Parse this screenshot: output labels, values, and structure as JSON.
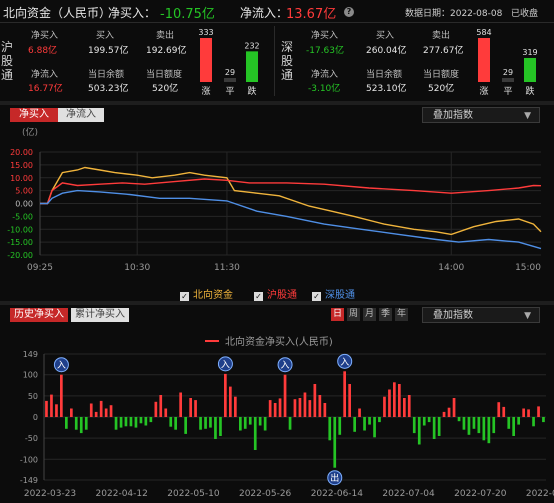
{
  "header": {
    "title": "北向资金（人民币）",
    "net_buy_label": "净买入：",
    "net_buy_value": "-10.75亿",
    "net_inflow_label": "净流入：",
    "net_inflow_value": "13.67亿",
    "date_text": "数据日期：2022-08-08",
    "status": "已收盘"
  },
  "sh": {
    "name": "沪股通",
    "net_buy_label": "净买入",
    "net_buy": "6.88亿",
    "buy_label": "买入",
    "buy": "199.57亿",
    "sell_label": "卖出",
    "sell": "192.69亿",
    "inflow_label": "净流入",
    "inflow": "16.77亿",
    "balance_label": "当日余额",
    "balance": "503.23亿",
    "quota_label": "当日额度",
    "quota": "520亿",
    "up": 333,
    "flat": 29,
    "down": 232,
    "up_label": "涨",
    "flat_label": "平",
    "down_label": "跌"
  },
  "sz": {
    "name": "深股通",
    "net_buy_label": "净买入",
    "net_buy": "-17.63亿",
    "buy_label": "买入",
    "buy": "260.04亿",
    "sell_label": "卖出",
    "sell": "277.67亿",
    "inflow_label": "净流入",
    "inflow": "-3.10亿",
    "balance_label": "当日余额",
    "balance": "523.10亿",
    "quota_label": "当日额度",
    "quota": "520亿",
    "up": 584,
    "flat": 29,
    "down": 319,
    "up_label": "涨",
    "flat_label": "平",
    "down_label": "跌"
  },
  "intraday": {
    "tab_active": "净买入",
    "tab_other": "净流入",
    "dropdown": "叠加指数",
    "legend": [
      "北向资金",
      "沪股通",
      "深股通"
    ]
  },
  "history": {
    "tab_active": "历史净买入",
    "tab_other": "累计净买入",
    "periods": [
      "日",
      "周",
      "月",
      "季",
      "年"
    ],
    "dropdown": "叠加指数",
    "legend": "北向资金净买入(人民币)",
    "markers": {
      "in": "入",
      "out": "出"
    }
  },
  "colors": {
    "red": "#ff3b3b",
    "green": "#25c425",
    "yellow": "#f0b43c",
    "blue": "#4f8fe6"
  },
  "chart_data": [
    {
      "type": "line",
      "title": "",
      "ylabel": "(亿)",
      "ylim": [
        -20,
        20
      ],
      "yticks": [
        "20.00",
        "15.00",
        "10.00",
        "5.00",
        "0.00",
        "-5.00",
        "-10.00",
        "-15.00",
        "-20.00"
      ],
      "xticks": [
        "09:25",
        "10:30",
        "11:30",
        "14:00",
        "15:00"
      ],
      "x_minutes_from_0925": [
        0,
        65,
        125,
        275,
        335
      ],
      "series": [
        {
          "name": "北向资金",
          "color": "#f0b43c",
          "t": [
            0,
            5,
            8,
            15,
            25,
            30,
            40,
            50,
            65,
            75,
            90,
            100,
            110,
            125,
            130,
            145,
            160,
            180,
            195,
            210,
            230,
            250,
            265,
            275,
            290,
            305,
            320,
            330,
            335
          ],
          "values": [
            0,
            0,
            5,
            12,
            13,
            14,
            13,
            12,
            11,
            10,
            11,
            12,
            11,
            10,
            5,
            4,
            3,
            -1,
            -3,
            -5,
            -8,
            -10,
            -11,
            -12,
            -9,
            -7,
            -6,
            -8,
            -11
          ]
        },
        {
          "name": "沪股通",
          "color": "#ff3b3b",
          "t": [
            0,
            5,
            8,
            15,
            25,
            40,
            55,
            70,
            90,
            110,
            125,
            140,
            165,
            190,
            220,
            250,
            275,
            300,
            320,
            330,
            335
          ],
          "values": [
            0,
            0,
            5,
            8,
            7,
            7.5,
            8,
            7.5,
            8.5,
            9.5,
            9,
            8,
            8,
            7.5,
            6,
            5,
            4,
            5,
            6,
            7,
            6.9
          ]
        },
        {
          "name": "深股通",
          "color": "#4f8fe6",
          "t": [
            0,
            5,
            8,
            15,
            25,
            40,
            60,
            80,
            100,
            125,
            145,
            165,
            190,
            215,
            240,
            265,
            280,
            300,
            320,
            335
          ],
          "values": [
            0,
            0,
            2,
            4,
            5,
            4.5,
            3.5,
            2,
            2,
            1,
            -3,
            -5,
            -8,
            -10,
            -12,
            -14,
            -15,
            -14,
            -15,
            -17.5
          ]
        }
      ]
    },
    {
      "type": "bar",
      "title": "北向资金净买入(人民币)",
      "ylim": [
        -149,
        149
      ],
      "yticks": [
        "149",
        "100",
        "50",
        "0",
        "-50",
        "-100",
        "-149"
      ],
      "xticks": [
        "2022-03-23",
        "2022-04-12",
        "2022-05-10",
        "2022-05-26",
        "2022-06-14",
        "2022-07-04",
        "2022-07-20",
        "2022-08-08"
      ],
      "values": [
        38,
        53,
        30,
        100,
        -28,
        20,
        -30,
        -38,
        -30,
        32,
        12,
        38,
        20,
        28,
        -30,
        -25,
        -22,
        -22,
        -25,
        -15,
        -20,
        -12,
        36,
        52,
        20,
        -23,
        -30,
        58,
        -40,
        45,
        40,
        -30,
        -28,
        -25,
        -52,
        -45,
        102,
        72,
        48,
        -32,
        -28,
        -18,
        -78,
        -20,
        -32,
        40,
        33,
        44,
        100,
        -30,
        42,
        45,
        58,
        40,
        78,
        52,
        33,
        -55,
        -120,
        -42,
        108,
        78,
        -35,
        20,
        -32,
        -18,
        -48,
        -12,
        48,
        65,
        82,
        78,
        45,
        52,
        -38,
        -65,
        -20,
        -12,
        -52,
        -45,
        12,
        22,
        45,
        -10,
        -30,
        -42,
        -28,
        -38,
        -55,
        -62,
        -38,
        35,
        24,
        -28,
        -45,
        -18,
        20,
        18,
        -22,
        25,
        -12
      ],
      "markers": [
        {
          "index": 3,
          "type": "in"
        },
        {
          "index": 36,
          "type": "in"
        },
        {
          "index": 48,
          "type": "in"
        },
        {
          "index": 60,
          "type": "in"
        },
        {
          "index": 58,
          "type": "out"
        }
      ]
    }
  ]
}
